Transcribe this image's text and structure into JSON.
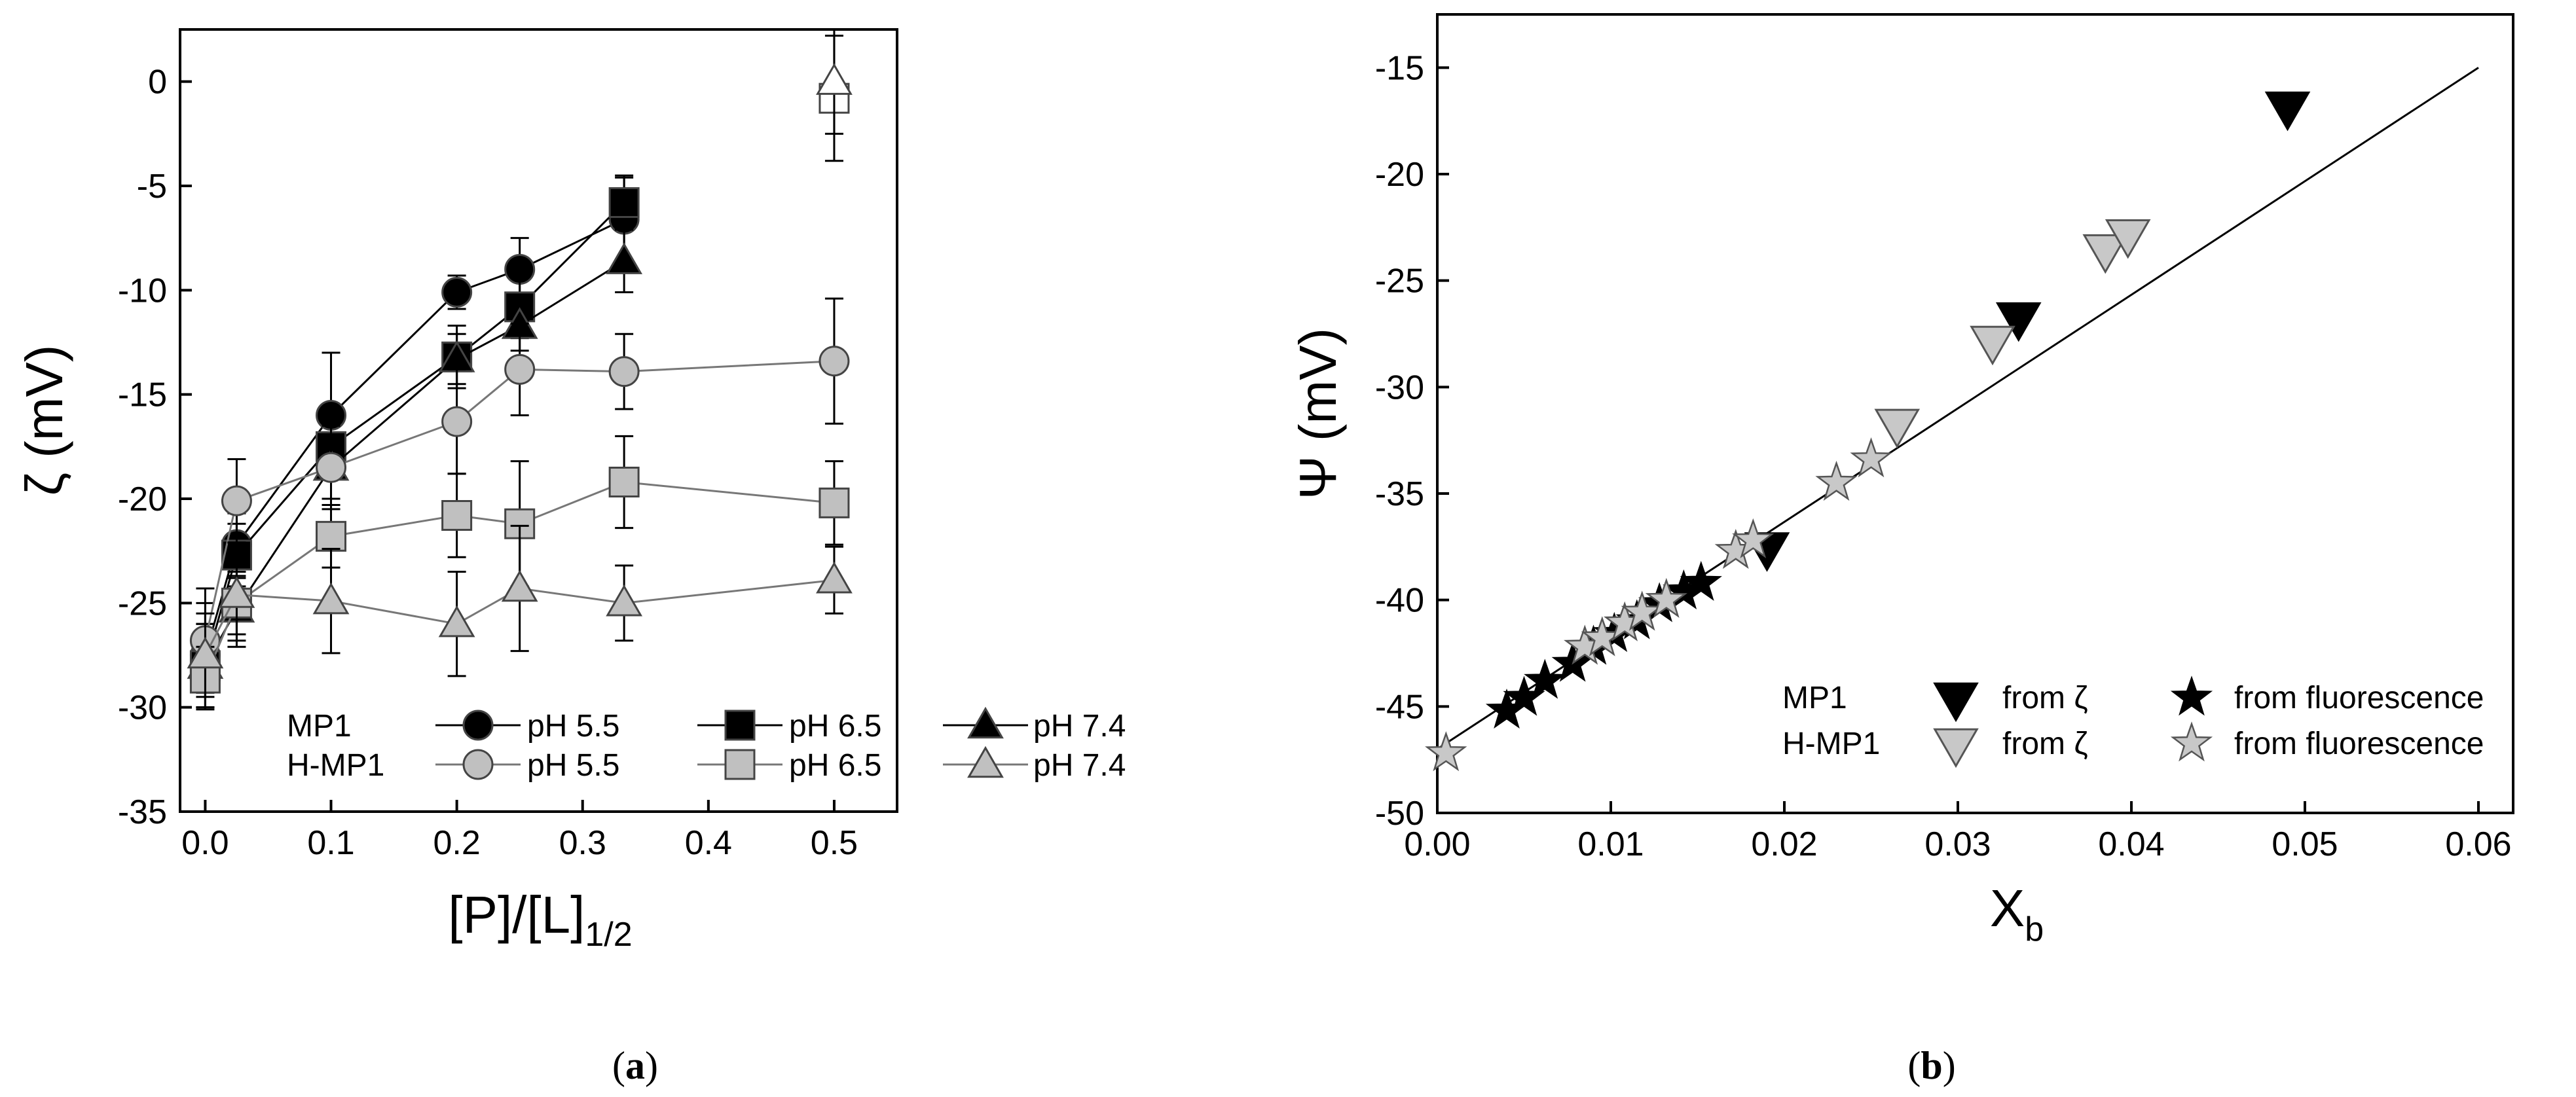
{
  "chart_data": [
    {
      "type": "line",
      "panel_label_open": "(",
      "panel_letter": "a",
      "panel_label_close": ")",
      "xlabel_main": "[P]/[L]",
      "xlabel_sub": "1/2",
      "ylabel": "ζ (mV)",
      "xlim": [
        -0.02,
        0.55
      ],
      "ylim": [
        -35,
        2.5
      ],
      "xticks": [
        0.0,
        0.1,
        0.2,
        0.3,
        0.4,
        0.5
      ],
      "xtick_labels": [
        "0.0",
        "0.1",
        "0.2",
        "0.3",
        "0.4",
        "0.5"
      ],
      "yticks": [
        0,
        -5,
        -10,
        -15,
        -20,
        -25,
        -30,
        -35
      ],
      "ytick_labels": [
        "0",
        "-5",
        "-10",
        "-15",
        "-20",
        "-25",
        "-30",
        "-35"
      ],
      "legend": {
        "row_labels": [
          "MP1",
          "H-MP1"
        ],
        "entries": [
          "pH 5.5",
          "pH 6.5",
          "pH 7.4",
          "pH 5.5",
          "pH 6.5",
          "pH 7.4"
        ]
      },
      "series": [
        {
          "name": "MP1 pH 5.5",
          "marker": "circle",
          "color": "#000000",
          "fill": "#000000",
          "x": [
            0,
            0.025,
            0.1,
            0.2,
            0.25,
            0.333
          ],
          "y": [
            -27.5,
            -22.2,
            -16.0,
            -10.1,
            -9.0,
            -6.6
          ],
          "err": [
            2.5,
            1.5,
            3.0,
            0.8,
            1.5,
            2.0
          ]
        },
        {
          "name": "MP1 pH 6.5",
          "marker": "square",
          "color": "#000000",
          "fill": "#000000",
          "x": [
            0,
            0.025,
            0.1,
            0.2,
            0.25,
            0.333
          ],
          "y": [
            -28.0,
            -22.7,
            -17.5,
            -13.2,
            -10.8,
            -5.8
          ],
          "err": [
            2.0,
            1.5,
            1.5,
            1.5,
            1.5,
            1.3
          ]
        },
        {
          "name": "MP1 pH 7.4",
          "marker": "triangle",
          "color": "#000000",
          "fill": "#000000",
          "x": [
            0,
            0.025,
            0.1,
            0.2,
            0.25,
            0.333
          ],
          "y": [
            -28.0,
            -25.3,
            -18.5,
            -13.3,
            -11.7,
            -8.6
          ],
          "err": [
            2.0,
            1.5,
            1.5,
            1.2,
            1.2,
            1.5
          ]
        },
        {
          "name": "H-MP1 pH 5.5",
          "marker": "circle",
          "color": "#000000",
          "fill": "#c0c0c0",
          "x": [
            0,
            0.025,
            0.1,
            0.2,
            0.25,
            0.333,
            0.5
          ],
          "y": [
            -26.8,
            -20.1,
            -18.5,
            -16.3,
            -13.8,
            -13.9,
            -13.4
          ],
          "err": [
            2.5,
            2.0,
            2.0,
            2.5,
            2.2,
            1.8,
            3.0
          ]
        },
        {
          "name": "H-MP1 pH 6.5",
          "marker": "square",
          "color": "#000000",
          "fill": "#c0c0c0",
          "x": [
            0,
            0.025,
            0.1,
            0.2,
            0.25,
            0.333,
            0.5
          ],
          "y": [
            -28.6,
            -25.0,
            -21.8,
            -20.8,
            -21.2,
            -19.2,
            -20.2
          ],
          "err": [
            1.5,
            1.5,
            1.5,
            2.0,
            3.0,
            2.2,
            2.0
          ]
        },
        {
          "name": "H-MP1 pH 7.4",
          "marker": "triangle",
          "color": "#000000",
          "fill": "#c0c0c0",
          "x": [
            0,
            0.025,
            0.1,
            0.2,
            0.25,
            0.333,
            0.5
          ],
          "y": [
            -27.5,
            -24.6,
            -24.9,
            -26.0,
            -24.3,
            -25.0,
            -23.9
          ],
          "err": [
            2.0,
            2.5,
            2.5,
            2.5,
            3.0,
            1.8,
            1.6
          ]
        },
        {
          "name": "open square (unconnected)",
          "marker": "square",
          "color": "#000000",
          "fill": "#ffffff",
          "no_line": true,
          "x": [
            0.5
          ],
          "y": [
            -0.8
          ],
          "err": [
            3.0
          ]
        },
        {
          "name": "open triangle (unconnected)",
          "marker": "triangle",
          "color": "#000000",
          "fill": "#ffffff",
          "no_line": true,
          "x": [
            0.5
          ],
          "y": [
            0.0
          ],
          "err": [
            2.5
          ]
        }
      ]
    },
    {
      "type": "scatter",
      "panel_label_open": "(",
      "panel_letter": "b",
      "panel_label_close": ")",
      "xlabel_main": "X",
      "xlabel_sub": "b",
      "ylabel": "Ψ (mV)",
      "xlim": [
        0,
        0.062
      ],
      "ylim": [
        -50,
        -12.5
      ],
      "xticks": [
        0.0,
        0.01,
        0.02,
        0.03,
        0.04,
        0.05,
        0.06
      ],
      "xtick_labels": [
        "0.00",
        "0.01",
        "0.02",
        "0.03",
        "0.04",
        "0.05",
        "0.06"
      ],
      "yticks": [
        -15,
        -20,
        -25,
        -30,
        -35,
        -40,
        -45,
        -50
      ],
      "ytick_labels": [
        "-15",
        "-20",
        "-25",
        "-30",
        "-35",
        "-40",
        "-45",
        "-50"
      ],
      "fit_line": {
        "x": [
          0.0,
          0.06
        ],
        "y": [
          -47.0,
          -15.0
        ]
      },
      "legend": {
        "row_labels": [
          "MP1",
          "H-MP1"
        ],
        "entries": [
          "from ζ",
          "from fluorescence",
          "from ζ",
          "from fluorescence"
        ]
      },
      "series": [
        {
          "name": "MP1 from ζ",
          "marker": "invtriangle",
          "color": "#000000",
          "fill": "#000000",
          "x": [
            0.019,
            0.0335,
            0.049
          ],
          "y": [
            -37.6,
            -26.8,
            -16.9
          ]
        },
        {
          "name": "H-MP1 from ζ",
          "marker": "invtriangle",
          "color": "#555555",
          "fill": "#c8c8c8",
          "x": [
            0.0265,
            0.032,
            0.0385,
            0.0398
          ],
          "y": [
            -31.8,
            -27.9,
            -23.6,
            -22.9
          ]
        },
        {
          "name": "MP1 from fluorescence",
          "marker": "star",
          "color": "#000000",
          "fill": "#000000",
          "x": [
            0.004,
            0.005,
            0.0062,
            0.0078,
            0.009,
            0.0102,
            0.0115,
            0.0128,
            0.0142,
            0.0152
          ],
          "y": [
            -45.2,
            -44.6,
            -43.8,
            -43.0,
            -42.2,
            -41.6,
            -41.0,
            -40.2,
            -39.6,
            -39.2
          ]
        },
        {
          "name": "H-MP1 from fluorescence",
          "marker": "star",
          "color": "#555555",
          "fill": "#c8c8c8",
          "x": [
            0.0005,
            0.0085,
            0.0095,
            0.0108,
            0.0118,
            0.0132,
            0.0172,
            0.0182,
            0.023,
            0.025
          ],
          "y": [
            -47.2,
            -42.2,
            -41.8,
            -41.1,
            -40.6,
            -40.0,
            -37.7,
            -37.2,
            -34.5,
            -33.4
          ]
        }
      ]
    }
  ]
}
